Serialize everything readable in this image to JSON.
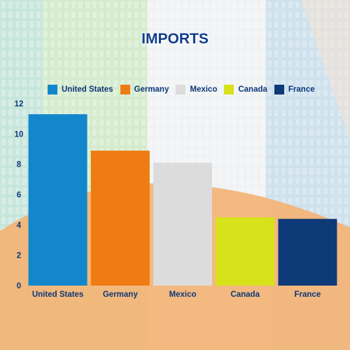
{
  "chart_data": {
    "type": "bar",
    "title": "IMPORTS",
    "categories": [
      "United States",
      "Germany",
      "Mexico",
      "Canada",
      "France"
    ],
    "values": [
      11.3,
      8.9,
      8.1,
      4.5,
      4.4
    ],
    "colors": [
      "#1287cc",
      "#ee7c12",
      "#dcdcdc",
      "#d8e21a",
      "#0e3a78"
    ],
    "yticks": [
      0,
      2,
      4,
      6,
      8,
      10,
      12
    ],
    "ylim": [
      0,
      12
    ],
    "xlabel": "",
    "ylabel": "",
    "grid": false,
    "legend_position": "top"
  },
  "legend": {
    "items": [
      {
        "label": "United States",
        "color": "#1287cc"
      },
      {
        "label": "Germany",
        "color": "#ee7c12"
      },
      {
        "label": "Mexico",
        "color": "#dcdcdc"
      },
      {
        "label": "Canada",
        "color": "#d8e21a"
      },
      {
        "label": "France",
        "color": "#0e3a78"
      }
    ]
  }
}
